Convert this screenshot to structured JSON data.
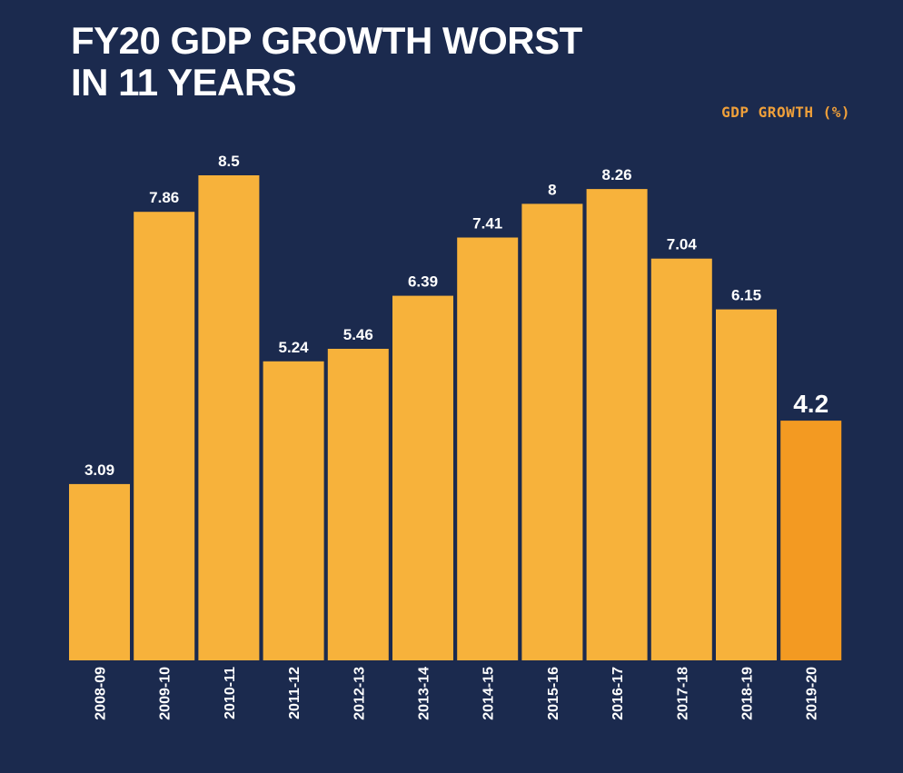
{
  "chart_data": {
    "type": "bar",
    "title": "FY20 GDP GROWTH WORST IN 11 YEARS",
    "title_lines": [
      "FY20 GDP GROWTH WORST",
      "IN 11 YEARS"
    ],
    "series_label": "GDP GROWTH (%)",
    "categories": [
      "2008-09",
      "2009-10",
      "2010-11",
      "2011-12",
      "2012-13",
      "2013-14",
      "2014-15",
      "2015-16",
      "2016-17",
      "2017-18",
      "2018-19",
      "2019-20"
    ],
    "values": [
      3.09,
      7.86,
      8.5,
      5.24,
      5.46,
      6.39,
      7.41,
      8,
      8.26,
      7.04,
      6.15,
      4.2
    ],
    "value_labels": [
      "3.09",
      "7.86",
      "8.5",
      "5.24",
      "5.46",
      "6.39",
      "7.41",
      "8",
      "8.26",
      "7.04",
      "6.15",
      "4.2"
    ],
    "highlight_category": "2019-20",
    "ylim": [
      0,
      8.5
    ],
    "grid": false,
    "colors": {
      "background": "#1b2a4e",
      "bar": "#f7b23b",
      "highlight_bar": "#f39a22",
      "series_label": "#f0a03a",
      "text": "#ffffff"
    }
  }
}
